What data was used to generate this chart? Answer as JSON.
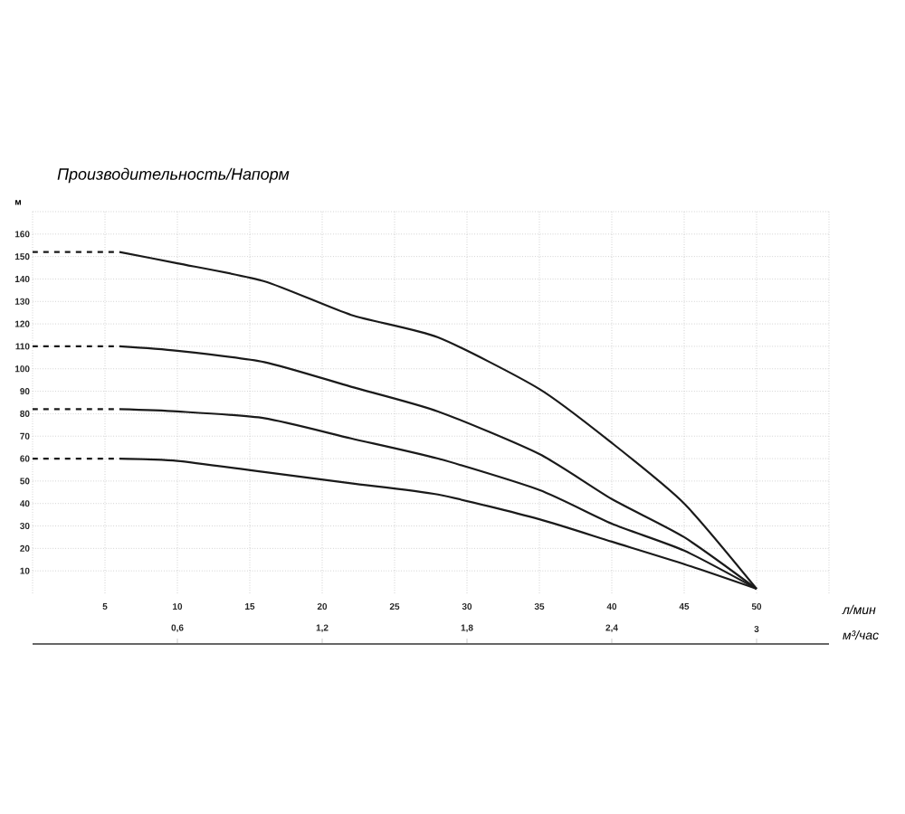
{
  "chart_data": {
    "type": "line",
    "title": "Производительность/Напорм",
    "xlabel": "л/мин",
    "ylabel": "м",
    "x2label": "м³/час",
    "xlim": [
      0,
      55
    ],
    "ylim": [
      0,
      170
    ],
    "xticks": [
      {
        "value": 0,
        "label": null
      },
      5,
      10,
      15,
      20,
      25,
      30,
      35,
      40,
      45,
      50,
      {
        "value": 55,
        "label": null
      }
    ],
    "yticks": [
      10,
      20,
      30,
      40,
      50,
      60,
      70,
      80,
      90,
      100,
      110,
      120,
      130,
      140,
      150,
      160,
      {
        "value": 170,
        "label": null
      }
    ],
    "x2lim": [
      0,
      3.3
    ],
    "x2ticks": [
      {
        "value": 0.6,
        "label": "0,6"
      },
      {
        "value": 1.2,
        "label": "1,2"
      },
      {
        "value": 1.8,
        "label": "1,8"
      },
      {
        "value": 2.4,
        "label": "2,4"
      },
      3
    ],
    "grid": true,
    "marker": "none",
    "series": [
      {
        "color": "#1a1a1a",
        "line_style": "dashed",
        "x": [
          0,
          6
        ],
        "values": [
          152,
          152
        ]
      },
      {
        "color": "#1a1a1a",
        "line_style": "solid",
        "x": [
          6,
          10,
          16,
          22,
          28,
          35,
          40,
          45,
          50
        ],
        "values": [
          152,
          147,
          139,
          124,
          114,
          91,
          67,
          40,
          2
        ]
      },
      {
        "color": "#1a1a1a",
        "line_style": "dashed",
        "x": [
          0,
          6
        ],
        "values": [
          110,
          110
        ]
      },
      {
        "color": "#1a1a1a",
        "line_style": "solid",
        "x": [
          6,
          10,
          16,
          22,
          28,
          35,
          40,
          45,
          50
        ],
        "values": [
          110,
          108,
          103,
          92,
          81,
          62,
          42,
          25,
          2
        ]
      },
      {
        "color": "#1a1a1a",
        "line_style": "dashed",
        "x": [
          0,
          6
        ],
        "values": [
          82,
          82
        ]
      },
      {
        "color": "#1a1a1a",
        "line_style": "solid",
        "x": [
          6,
          10,
          16,
          22,
          28,
          35,
          40,
          45,
          50
        ],
        "values": [
          82,
          81,
          78,
          69,
          60,
          46,
          31,
          19,
          2
        ]
      },
      {
        "color": "#1a1a1a",
        "line_style": "dashed",
        "x": [
          0,
          6
        ],
        "values": [
          60,
          60
        ]
      },
      {
        "color": "#1a1a1a",
        "line_style": "solid",
        "x": [
          6,
          10,
          16,
          22,
          28,
          35,
          40,
          45,
          50
        ],
        "values": [
          60,
          59,
          54,
          49,
          44,
          33,
          23,
          13,
          2
        ]
      }
    ]
  }
}
